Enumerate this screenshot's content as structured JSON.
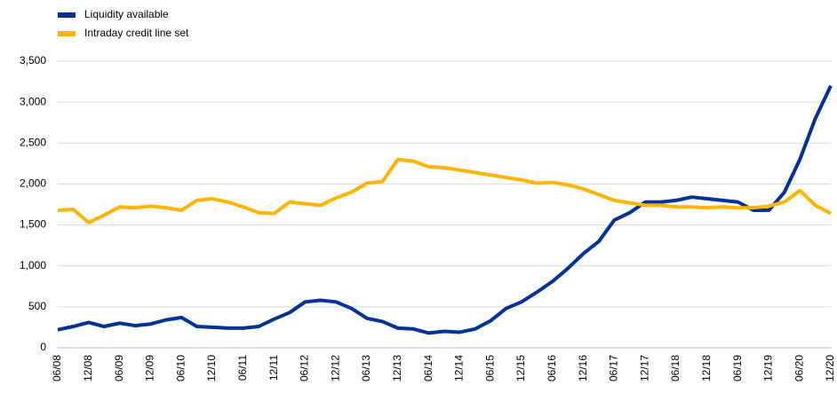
{
  "chart_data": {
    "type": "line",
    "categories": [
      "06/08",
      null,
      "12/08",
      null,
      "06/09",
      null,
      "12/09",
      null,
      "06/10",
      null,
      "12/10",
      null,
      "06/11",
      null,
      "12/11",
      null,
      "06/12",
      null,
      "12/12",
      null,
      "06/13",
      null,
      "12/13",
      null,
      "06/14",
      null,
      "12/14",
      null,
      "06/15",
      null,
      "12/15",
      null,
      "06/16",
      null,
      "12/16",
      null,
      "06/17",
      null,
      "12/17",
      null,
      "06/18",
      null,
      "12/18",
      null,
      "06/19",
      null,
      "12/19",
      null,
      "06/20",
      null,
      "12/20"
    ],
    "series": [
      {
        "name": "Liquidity available",
        "color": "#003299",
        "values": [
          220,
          260,
          310,
          260,
          300,
          270,
          290,
          340,
          370,
          260,
          250,
          240,
          240,
          260,
          350,
          430,
          560,
          580,
          560,
          480,
          360,
          320,
          240,
          230,
          180,
          200,
          190,
          230,
          330,
          480,
          560,
          680,
          810,
          970,
          1150,
          1300,
          1560,
          1650,
          1780,
          1780,
          1800,
          1840,
          1820,
          1800,
          1780,
          1680,
          1680,
          1900,
          2300,
          2800,
          3200
        ]
      },
      {
        "name": "Intraday credit line set",
        "color": "#FFB400",
        "values": [
          1680,
          1690,
          1530,
          1620,
          1720,
          1710,
          1730,
          1710,
          1680,
          1800,
          1820,
          1780,
          1720,
          1650,
          1640,
          1780,
          1760,
          1740,
          1830,
          1900,
          2010,
          2030,
          2300,
          2280,
          2210,
          2200,
          2170,
          2140,
          2110,
          2080,
          2050,
          2010,
          2020,
          1990,
          1940,
          1870,
          1800,
          1770,
          1740,
          1740,
          1720,
          1720,
          1710,
          1720,
          1710,
          1710,
          1730,
          1780,
          1920,
          1740,
          1640
        ]
      }
    ],
    "ylim": [
      0,
      3500
    ],
    "yticks": [
      0,
      {
        "value": 500,
        "label": "500"
      },
      {
        "value": 1000,
        "label": "1,000"
      },
      {
        "value": 1500,
        "label": "1,500"
      },
      {
        "value": 2000,
        "label": "2,000"
      },
      {
        "value": 2500,
        "label": "2,500"
      },
      {
        "value": 3000,
        "label": "3,000"
      },
      {
        "value": 3500,
        "label": "3,500"
      }
    ],
    "grid": true
  }
}
